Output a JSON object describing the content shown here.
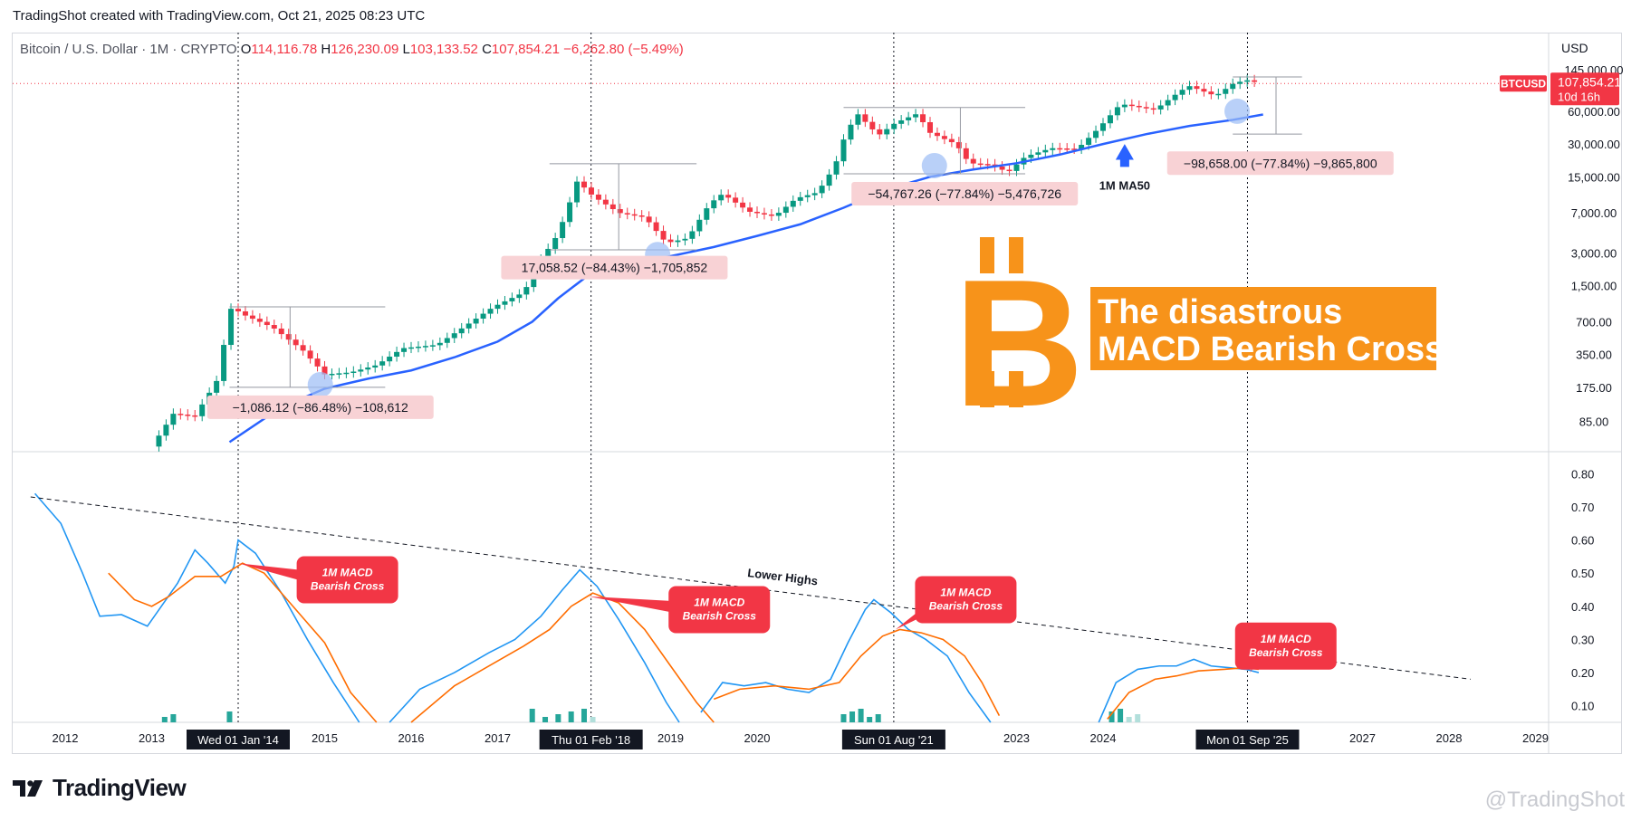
{
  "header": {
    "caption": "TradingShot created with TradingView.com, Oct 21, 2025 08:23 UTC"
  },
  "legend": {
    "symbol": "Bitcoin / U.S. Dollar · 1M · CRYPTO",
    "o_label": "O",
    "o": "114,116.78",
    "h_label": "H",
    "h": "126,230.09",
    "l_label": "L",
    "l": "103,133.52",
    "c_label": "C",
    "c": "107,854.21",
    "change": "−6,262.80 (−5.49%)"
  },
  "currency": "USD",
  "price_badge": {
    "ticker": "BTCUSD",
    "price": "107,854.21",
    "countdown": "10d 16h"
  },
  "footer": {
    "brand": "TradingView",
    "watermark": "@TradingShot"
  },
  "colors": {
    "up": "#089981",
    "down": "#f23645",
    "ma": "#2962ff",
    "macd": "#2196f3",
    "signal": "#ff6d00",
    "bitcoin": "#f7931a",
    "callout": "#f23645",
    "drop_box": "#f8d2d5"
  },
  "chart_data": [
    {
      "type": "candlestick",
      "title": "Bitcoin / U.S. Dollar · 1M · CRYPTO",
      "scale": "log",
      "ylim": [
        40,
        200000
      ],
      "y_ticks": [
        "145,000.00",
        "60,000.00",
        "30,000.00",
        "15,000.00",
        "7,000.00",
        "3,000.00",
        "1,500.00",
        "700.00",
        "350.00",
        "175.00",
        "85.00"
      ],
      "x_ticks": [
        "2012",
        "2013",
        "2015",
        "2016",
        "2017",
        "2019",
        "2020",
        "2023",
        "2024",
        "2027",
        "2028",
        "2029"
      ],
      "x_highlight": [
        "Wed 01 Jan '14",
        "Thu 01 Feb '18",
        "Sun 01 Aug '21",
        "Mon 01 Sep '25"
      ],
      "last_price": 107854.21,
      "price_path": [
        [
          2013.0,
          50
        ],
        [
          2013.25,
          100
        ],
        [
          2013.5,
          95
        ],
        [
          2013.75,
          200
        ],
        [
          2013.92,
          950
        ],
        [
          2014.08,
          800
        ],
        [
          2014.4,
          620
        ],
        [
          2014.75,
          380
        ],
        [
          2015.0,
          230
        ],
        [
          2015.3,
          240
        ],
        [
          2015.6,
          280
        ],
        [
          2015.9,
          400
        ],
        [
          2016.3,
          430
        ],
        [
          2016.6,
          620
        ],
        [
          2016.95,
          960
        ],
        [
          2017.3,
          1300
        ],
        [
          2017.5,
          2600
        ],
        [
          2017.7,
          4500
        ],
        [
          2017.85,
          9500
        ],
        [
          2017.92,
          13800
        ],
        [
          2018.1,
          10000
        ],
        [
          2018.4,
          7000
        ],
        [
          2018.7,
          6400
        ],
        [
          2018.95,
          3700
        ],
        [
          2019.2,
          4100
        ],
        [
          2019.45,
          8500
        ],
        [
          2019.6,
          10500
        ],
        [
          2019.9,
          7200
        ],
        [
          2020.2,
          6500
        ],
        [
          2020.45,
          9500
        ],
        [
          2020.7,
          10800
        ],
        [
          2020.9,
          19000
        ],
        [
          2021.0,
          33000
        ],
        [
          2021.15,
          58000
        ],
        [
          2021.4,
          36000
        ],
        [
          2021.6,
          47000
        ],
        [
          2021.85,
          57000
        ],
        [
          2022.0,
          38000
        ],
        [
          2022.3,
          30000
        ],
        [
          2022.45,
          20000
        ],
        [
          2022.7,
          19400
        ],
        [
          2022.9,
          16500
        ],
        [
          2023.1,
          23000
        ],
        [
          2023.4,
          27500
        ],
        [
          2023.7,
          27000
        ],
        [
          2023.95,
          42000
        ],
        [
          2024.2,
          70000
        ],
        [
          2024.6,
          62000
        ],
        [
          2024.9,
          93000
        ],
        [
          2025.0,
          102000
        ],
        [
          2025.3,
          83000
        ],
        [
          2025.5,
          107000
        ],
        [
          2025.65,
          116000
        ],
        [
          2025.72,
          114000
        ],
        [
          2025.8,
          107854
        ]
      ],
      "ma50_path": [
        [
          2013.9,
          55
        ],
        [
          2014.5,
          115
        ],
        [
          2015.0,
          170
        ],
        [
          2015.5,
          210
        ],
        [
          2016.0,
          250
        ],
        [
          2016.5,
          330
        ],
        [
          2017.0,
          460
        ],
        [
          2017.4,
          700
        ],
        [
          2017.7,
          1150
        ],
        [
          2018.0,
          1750
        ],
        [
          2018.5,
          2300
        ],
        [
          2019.0,
          2800
        ],
        [
          2019.5,
          3400
        ],
        [
          2020.0,
          4300
        ],
        [
          2020.5,
          5500
        ],
        [
          2021.0,
          7800
        ],
        [
          2021.5,
          11500
        ],
        [
          2022.0,
          15000
        ],
        [
          2022.5,
          17500
        ],
        [
          2023.0,
          20000
        ],
        [
          2023.5,
          24000
        ],
        [
          2024.0,
          30000
        ],
        [
          2024.5,
          37000
        ],
        [
          2025.0,
          44000
        ],
        [
          2025.5,
          50000
        ],
        [
          2025.85,
          56000
        ]
      ],
      "annotations": [
        {
          "text": "−1,086.12 (−86.48%) −108,612",
          "x": 2014.95,
          "y": 115
        },
        {
          "text": "17,058.52 (−84.43%) −1,705,852",
          "x": 2018.35,
          "y": 2200
        },
        {
          "text": "−54,767.26 (−77.84%) −5,476,726",
          "x": 2022.4,
          "y": 10500
        },
        {
          "text": "−98,658.00 (−77.84%) −9,865,800",
          "x": 2026.05,
          "y": 20000
        },
        {
          "text": "1M MA50",
          "x": 2024.25,
          "y": 17500
        }
      ],
      "title_overlay": [
        "The disastrous",
        "MACD Bearish Cross"
      ]
    },
    {
      "type": "line",
      "title": "",
      "ylim": [
        0.05,
        0.85
      ],
      "y_ticks": [
        "0.80",
        "0.70",
        "0.60",
        "0.50",
        "0.40",
        "0.30",
        "0.20",
        "0.10"
      ],
      "series": [
        {
          "color": "#2196f3",
          "points": [
            [
              2011.65,
              0.74
            ],
            [
              2011.95,
              0.65
            ],
            [
              2012.2,
              0.5
            ],
            [
              2012.4,
              0.37
            ],
            [
              2012.65,
              0.375
            ],
            [
              2012.95,
              0.34
            ],
            [
              2013.3,
              0.47
            ],
            [
              2013.5,
              0.57
            ],
            [
              2013.65,
              0.53
            ],
            [
              2013.85,
              0.47
            ],
            [
              2013.95,
              0.52
            ],
            [
              2014.0,
              0.6
            ],
            [
              2014.2,
              0.56
            ],
            [
              2014.5,
              0.44
            ],
            [
              2014.8,
              0.3
            ],
            [
              2015.1,
              0.17
            ],
            [
              2015.4,
              0.02
            ]
          ]
        },
        {
          "color": "#ff6d00",
          "points": [
            [
              2012.5,
              0.5
            ],
            [
              2012.8,
              0.42
            ],
            [
              2013.0,
              0.4
            ],
            [
              2013.2,
              0.43
            ],
            [
              2013.5,
              0.49
            ],
            [
              2013.8,
              0.49
            ],
            [
              2014.05,
              0.53
            ],
            [
              2014.3,
              0.5
            ],
            [
              2014.6,
              0.41
            ],
            [
              2015.0,
              0.29
            ],
            [
              2015.3,
              0.14
            ],
            [
              2015.6,
              0.02
            ]
          ]
        },
        {
          "color": "#2196f3",
          "points": [
            [
              2015.75,
              0.02
            ],
            [
              2016.1,
              0.15
            ],
            [
              2016.5,
              0.2
            ],
            [
              2016.9,
              0.26
            ],
            [
              2017.2,
              0.3
            ],
            [
              2017.5,
              0.37
            ],
            [
              2017.75,
              0.45
            ],
            [
              2017.95,
              0.51
            ],
            [
              2018.15,
              0.46
            ],
            [
              2018.4,
              0.36
            ],
            [
              2018.7,
              0.23
            ],
            [
              2018.95,
              0.11
            ],
            [
              2019.1,
              0.02
            ]
          ]
        },
        {
          "color": "#ff6d00",
          "points": [
            [
              2016.0,
              0.05
            ],
            [
              2016.5,
              0.16
            ],
            [
              2016.9,
              0.22
            ],
            [
              2017.3,
              0.28
            ],
            [
              2017.6,
              0.33
            ],
            [
              2017.85,
              0.4
            ],
            [
              2018.1,
              0.44
            ],
            [
              2018.4,
              0.41
            ],
            [
              2018.7,
              0.33
            ],
            [
              2019.0,
              0.22
            ],
            [
              2019.3,
              0.11
            ],
            [
              2019.5,
              0.04
            ]
          ]
        },
        {
          "color": "#2196f3",
          "points": [
            [
              2019.35,
              0.08
            ],
            [
              2019.6,
              0.17
            ],
            [
              2019.85,
              0.16
            ],
            [
              2020.1,
              0.17
            ],
            [
              2020.35,
              0.15
            ],
            [
              2020.6,
              0.14
            ],
            [
              2020.85,
              0.18
            ],
            [
              2021.05,
              0.29
            ],
            [
              2021.25,
              0.39
            ],
            [
              2021.35,
              0.42
            ],
            [
              2021.55,
              0.38
            ],
            [
              2021.75,
              0.33
            ],
            [
              2021.95,
              0.3
            ],
            [
              2022.2,
              0.25
            ],
            [
              2022.45,
              0.14
            ],
            [
              2022.7,
              0.02
            ]
          ]
        },
        {
          "color": "#ff6d00",
          "points": [
            [
              2019.5,
              0.12
            ],
            [
              2019.8,
              0.15
            ],
            [
              2020.2,
              0.16
            ],
            [
              2020.6,
              0.15
            ],
            [
              2020.95,
              0.17
            ],
            [
              2021.2,
              0.25
            ],
            [
              2021.45,
              0.31
            ],
            [
              2021.65,
              0.33
            ],
            [
              2021.9,
              0.32
            ],
            [
              2022.15,
              0.3
            ],
            [
              2022.4,
              0.25
            ],
            [
              2022.6,
              0.17
            ],
            [
              2022.8,
              0.07
            ]
          ]
        },
        {
          "color": "#2196f3",
          "points": [
            [
              2023.95,
              0.02
            ],
            [
              2024.15,
              0.17
            ],
            [
              2024.4,
              0.21
            ],
            [
              2024.65,
              0.22
            ],
            [
              2024.85,
              0.22
            ],
            [
              2025.05,
              0.24
            ],
            [
              2025.25,
              0.22
            ],
            [
              2025.45,
              0.215
            ],
            [
              2025.65,
              0.21
            ],
            [
              2025.8,
              0.2
            ]
          ]
        },
        {
          "color": "#ff6d00",
          "points": [
            [
              2024.05,
              0.06
            ],
            [
              2024.3,
              0.14
            ],
            [
              2024.6,
              0.18
            ],
            [
              2024.85,
              0.19
            ],
            [
              2025.1,
              0.205
            ],
            [
              2025.4,
              0.21
            ],
            [
              2025.65,
              0.215
            ],
            [
              2025.8,
              0.21
            ]
          ]
        }
      ],
      "trendline": [
        [
          2011.6,
          0.73
        ],
        [
          2028.25,
          0.18
        ]
      ],
      "trendline_label": "Lower Highs",
      "callouts": [
        "1M MACD",
        "Bearish Cross"
      ]
    }
  ]
}
